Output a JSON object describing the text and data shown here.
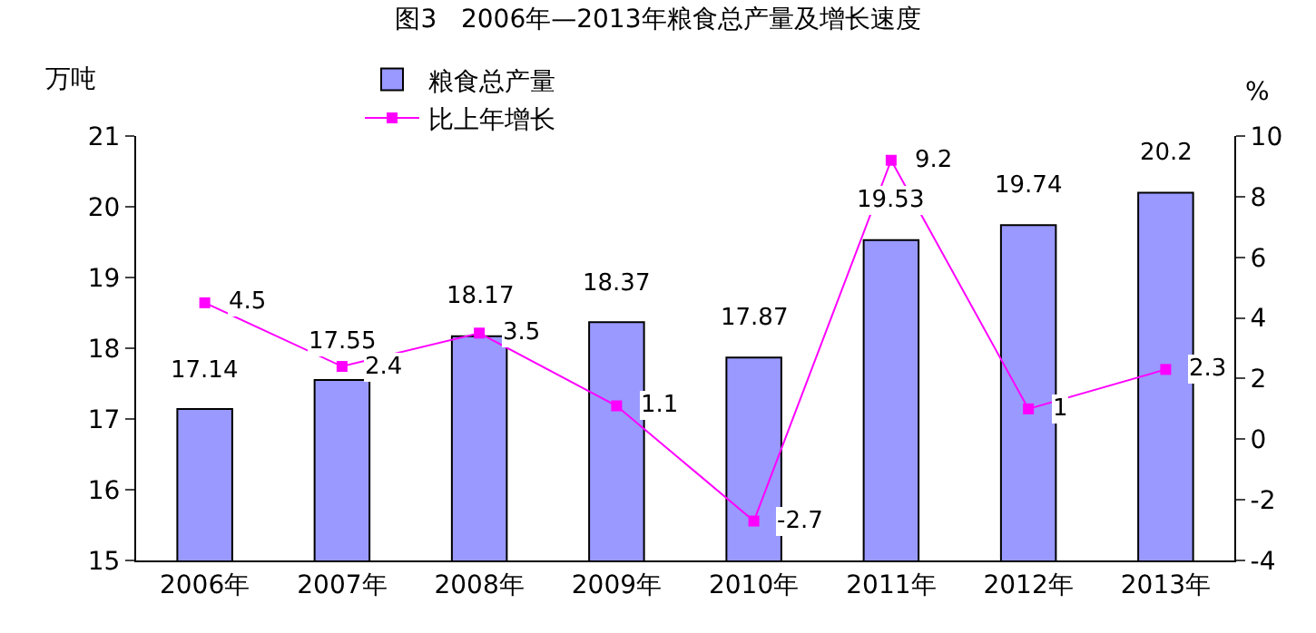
{
  "chart_data": {
    "type": "bar",
    "title": "图3   2006年—2013年粮食总产量及增长速度",
    "ylabel": "万吨",
    "y2label": "%",
    "categories": [
      "2006年",
      "2007年",
      "2008年",
      "2009年",
      "2010年",
      "2011年",
      "2012年",
      "2013年"
    ],
    "series": [
      {
        "name": "粮食总产量",
        "color": "#9999ff",
        "values": [
          17.14,
          17.55,
          18.17,
          18.37,
          17.87,
          19.53,
          19.74,
          20.2
        ]
      },
      {
        "name": "比上年增长",
        "type": "line",
        "axis": "y2",
        "color": "#ff00ff",
        "marker": "square",
        "values": [
          4.5,
          2.4,
          3.5,
          1.1,
          -2.7,
          9.2,
          1,
          2.3
        ]
      }
    ],
    "ylim": [
      15,
      21
    ],
    "yticks": [
      15,
      16,
      17,
      18,
      19,
      20,
      21
    ],
    "y2lim": [
      -4,
      10
    ],
    "y2ticks": [
      -4,
      -2,
      0,
      2,
      4,
      6,
      8,
      10
    ],
    "data_labels": true,
    "legend": "top"
  }
}
